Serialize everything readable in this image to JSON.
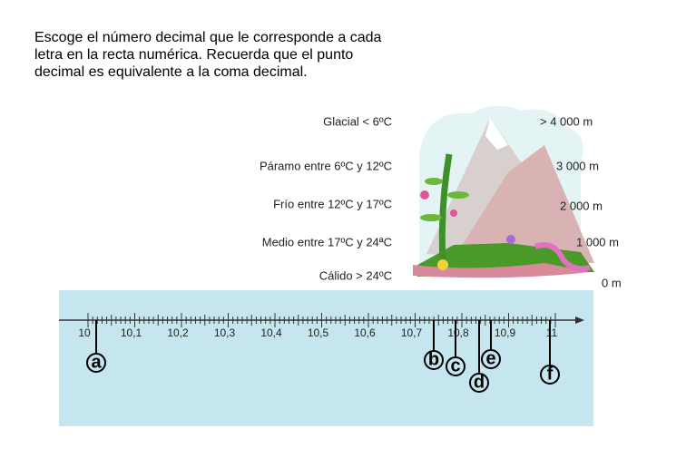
{
  "instructions": [
    "Escoge el número decimal que le corresponde a cada",
    "letra en la recta numérica. Recuerda que el punto",
    "decimal es equivalente a la coma decimal."
  ],
  "climate_zones": [
    "Glacial < 6ºC",
    "Páramo entre 6ºC y 12ºC",
    "Frío entre  12ºC y 17ºC",
    "Medio entre 17ºC y 24ªC",
    "Cálido > 24ºC"
  ],
  "altitudes": [
    "> 4 000 m",
    "3 000 m",
    "2 000 m",
    "1 000 m",
    "0 m"
  ],
  "number_line": {
    "labels": [
      "10",
      "10,1",
      "10,2",
      "10,3",
      "10,4",
      "10,5",
      "10,6",
      "10,7",
      "10,8",
      "10,9",
      "11"
    ],
    "markers": [
      "a",
      "b",
      "c",
      "d",
      "e",
      "f"
    ]
  }
}
